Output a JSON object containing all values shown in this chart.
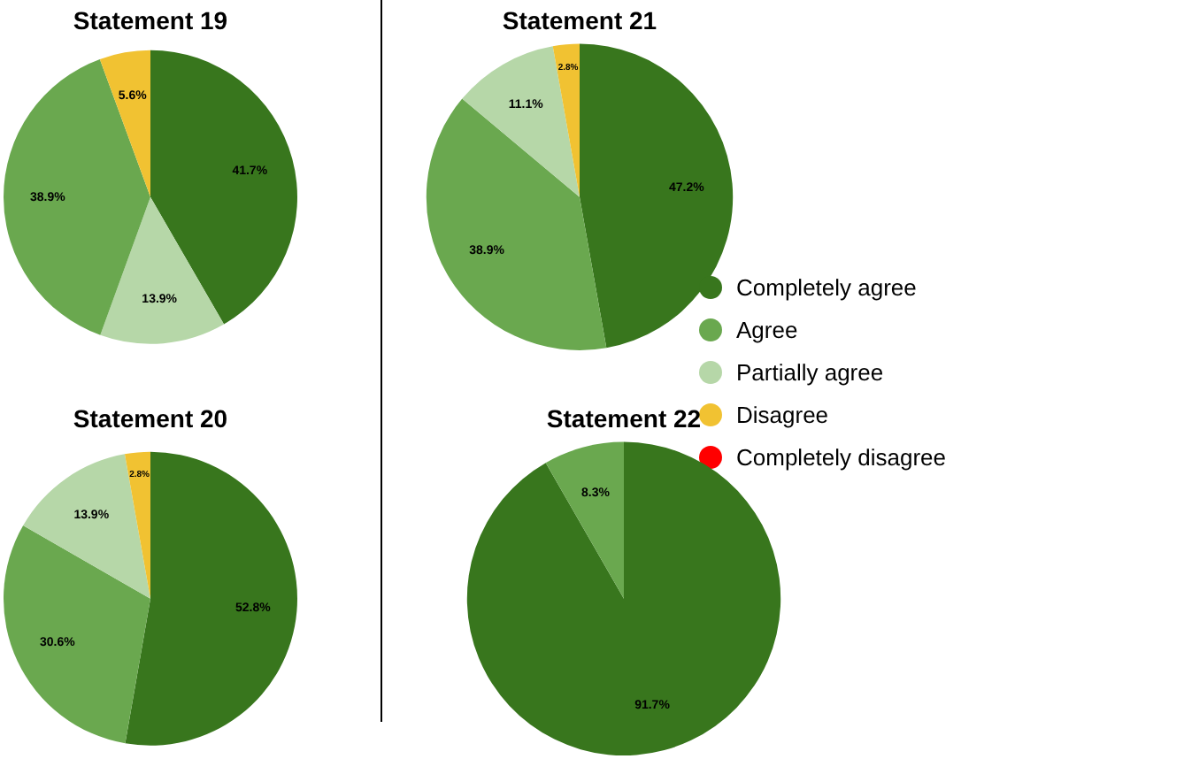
{
  "chart_data": [
    {
      "type": "pie",
      "title": "Statement 19",
      "categories": [
        null,
        null,
        null,
        null
      ],
      "values": [
        41.7,
        13.9,
        38.9,
        5.6
      ],
      "colors": [
        "#38761d",
        "#b6d7a8",
        "#6aa84f",
        "#f1c232"
      ],
      "value_labels": [
        "41.7%",
        "13.9%",
        "38.9%",
        "5.6%"
      ]
    },
    {
      "type": "pie",
      "title": "Statement 21",
      "categories": [
        "Completely agree",
        "Agree",
        "Partially agree",
        "Disagree",
        "Completely disagree"
      ],
      "values": [
        47.2,
        38.9,
        11.1,
        2.8,
        0
      ],
      "colors": [
        "#38761d",
        "#6aa84f",
        "#b6d7a8",
        "#f1c232",
        "#ff0000"
      ],
      "value_labels": [
        "47.2%",
        "38.9%",
        "11.1%",
        "2.8%",
        null
      ],
      "legend": "right"
    },
    {
      "type": "pie",
      "title": "Statement 20",
      "categories": [
        null,
        null,
        null,
        null
      ],
      "values": [
        52.8,
        30.6,
        13.9,
        2.8
      ],
      "colors": [
        "#38761d",
        "#6aa84f",
        "#b6d7a8",
        "#f1c232"
      ],
      "value_labels": [
        "52.8%",
        "30.6%",
        "13.9%",
        "2.8%"
      ]
    },
    {
      "type": "pie",
      "title": "Statement 22",
      "categories": [
        null,
        null
      ],
      "values": [
        91.7,
        8.3
      ],
      "colors": [
        "#38761d",
        "#6aa84f"
      ],
      "value_labels": [
        "91.7%",
        "8.3%"
      ]
    }
  ]
}
